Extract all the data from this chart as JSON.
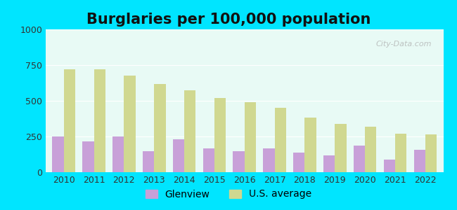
{
  "title": "Burglaries per 100,000 population",
  "years": [
    2010,
    2011,
    2012,
    2013,
    2014,
    2015,
    2016,
    2017,
    2018,
    2019,
    2020,
    2021,
    2022
  ],
  "glenview": [
    248,
    215,
    252,
    148,
    228,
    168,
    148,
    168,
    138,
    118,
    185,
    88,
    155
  ],
  "us_average": [
    720,
    720,
    678,
    620,
    575,
    518,
    490,
    450,
    380,
    340,
    318,
    270,
    265
  ],
  "glenview_color": "#c8a0d8",
  "us_average_color": "#d0d890",
  "background_color": "#e8faf5",
  "outer_background": "#00e5ff",
  "ylim": [
    0,
    1000
  ],
  "yticks": [
    0,
    250,
    500,
    750,
    1000
  ],
  "bar_width": 0.38,
  "title_fontsize": 15,
  "tick_fontsize": 9,
  "legend_fontsize": 10
}
